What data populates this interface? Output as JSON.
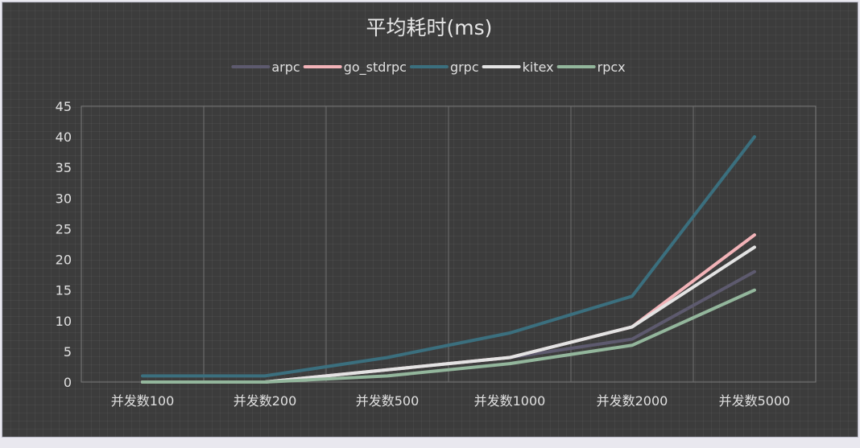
{
  "chart_data": {
    "type": "line",
    "title": "平均耗时(ms)",
    "xlabel": "",
    "ylabel": "",
    "categories": [
      "并发数100",
      "并发数200",
      "并发数500",
      "并发数1000",
      "并发数2000",
      "并发数5000"
    ],
    "ylim": [
      0,
      45
    ],
    "yticks": [
      0,
      5,
      10,
      15,
      20,
      25,
      30,
      35,
      40,
      45
    ],
    "grid": true,
    "legend_position": "top-center",
    "series": [
      {
        "name": "arpc",
        "color": "#5d5a6e",
        "values": [
          0,
          0,
          2,
          4,
          7,
          18
        ]
      },
      {
        "name": "go_stdrpc",
        "color": "#f2b3b8",
        "values": [
          0,
          0,
          2,
          4,
          9,
          24
        ]
      },
      {
        "name": "grpc",
        "color": "#3b6f7e",
        "values": [
          1,
          1,
          4,
          8,
          14,
          40
        ]
      },
      {
        "name": "kitex",
        "color": "#e3e3e3",
        "values": [
          0,
          0,
          2,
          4,
          9,
          22
        ]
      },
      {
        "name": "rpcx",
        "color": "#93b69c",
        "values": [
          0,
          0,
          1,
          3,
          6,
          15
        ]
      }
    ]
  }
}
